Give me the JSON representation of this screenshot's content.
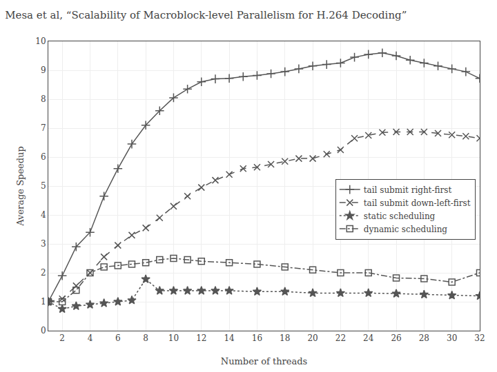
{
  "chart_data": {
    "type": "line",
    "title": "Mesa et al, “Scalability of Macroblock-level Parallelism for H.264 Decoding”",
    "xlabel": "Number of threads",
    "ylabel": "Average Speedup",
    "xlim": [
      1,
      32
    ],
    "ylim": [
      0,
      10
    ],
    "xticks": [
      2,
      4,
      6,
      8,
      10,
      12,
      14,
      16,
      18,
      20,
      22,
      24,
      26,
      28,
      30,
      32
    ],
    "yticks": [
      0,
      1,
      2,
      3,
      4,
      5,
      6,
      7,
      8,
      9,
      10
    ],
    "grid": true,
    "legend": "right",
    "series": [
      {
        "name": "tail submit right-first",
        "color": "#555555",
        "marker": "plus",
        "line_style": "solid",
        "x": [
          1,
          2,
          3,
          4,
          5,
          6,
          7,
          8,
          9,
          10,
          11,
          12,
          13,
          14,
          15,
          16,
          17,
          18,
          19,
          20,
          21,
          22,
          23,
          24,
          25,
          26,
          27,
          28,
          29,
          30,
          31,
          32
        ],
        "values": [
          1.0,
          1.9,
          2.9,
          3.4,
          4.65,
          5.6,
          6.45,
          7.1,
          7.6,
          8.05,
          8.35,
          8.6,
          8.7,
          8.72,
          8.78,
          8.82,
          8.88,
          8.95,
          9.05,
          9.15,
          9.2,
          9.25,
          9.45,
          9.55,
          9.6,
          9.5,
          9.35,
          9.25,
          9.15,
          9.05,
          8.95,
          8.72
        ]
      },
      {
        "name": "tail submit down-left-first",
        "color": "#555555",
        "marker": "x",
        "line_style": "dashed",
        "x": [
          1,
          2,
          3,
          4,
          5,
          6,
          7,
          8,
          9,
          10,
          11,
          12,
          13,
          14,
          15,
          16,
          17,
          18,
          19,
          20,
          21,
          22,
          23,
          24,
          25,
          26,
          27,
          28,
          29,
          30,
          31,
          32
        ],
        "values": [
          1.0,
          1.1,
          1.55,
          2.0,
          2.55,
          2.95,
          3.3,
          3.55,
          3.9,
          4.3,
          4.65,
          4.95,
          5.2,
          5.4,
          5.6,
          5.65,
          5.75,
          5.85,
          5.95,
          5.95,
          6.1,
          6.25,
          6.65,
          6.75,
          6.85,
          6.87,
          6.87,
          6.87,
          6.82,
          6.77,
          6.72,
          6.65
        ]
      },
      {
        "name": "static scheduling",
        "color": "#555555",
        "marker": "star",
        "line_style": "dotted",
        "x": [
          1,
          2,
          3,
          4,
          5,
          6,
          7,
          8,
          9,
          10,
          11,
          12,
          13,
          14,
          16,
          18,
          20,
          22,
          24,
          26,
          28,
          30,
          32
        ],
        "values": [
          1.0,
          0.75,
          0.85,
          0.9,
          0.95,
          1.0,
          1.05,
          1.78,
          1.38,
          1.38,
          1.38,
          1.38,
          1.38,
          1.38,
          1.35,
          1.35,
          1.3,
          1.3,
          1.3,
          1.28,
          1.25,
          1.22,
          1.2
        ]
      },
      {
        "name": "dynamic scheduling",
        "color": "#555555",
        "marker": "square",
        "line_style": "dashdot",
        "x": [
          1,
          2,
          3,
          4,
          5,
          6,
          7,
          8,
          9,
          10,
          11,
          12,
          14,
          16,
          18,
          20,
          22,
          24,
          26,
          28,
          30,
          32
        ],
        "values": [
          1.0,
          1.0,
          1.4,
          2.0,
          2.2,
          2.25,
          2.3,
          2.35,
          2.45,
          2.5,
          2.45,
          2.4,
          2.35,
          2.3,
          2.2,
          2.1,
          2.0,
          2.0,
          1.82,
          1.8,
          1.68,
          2.0
        ]
      }
    ]
  }
}
